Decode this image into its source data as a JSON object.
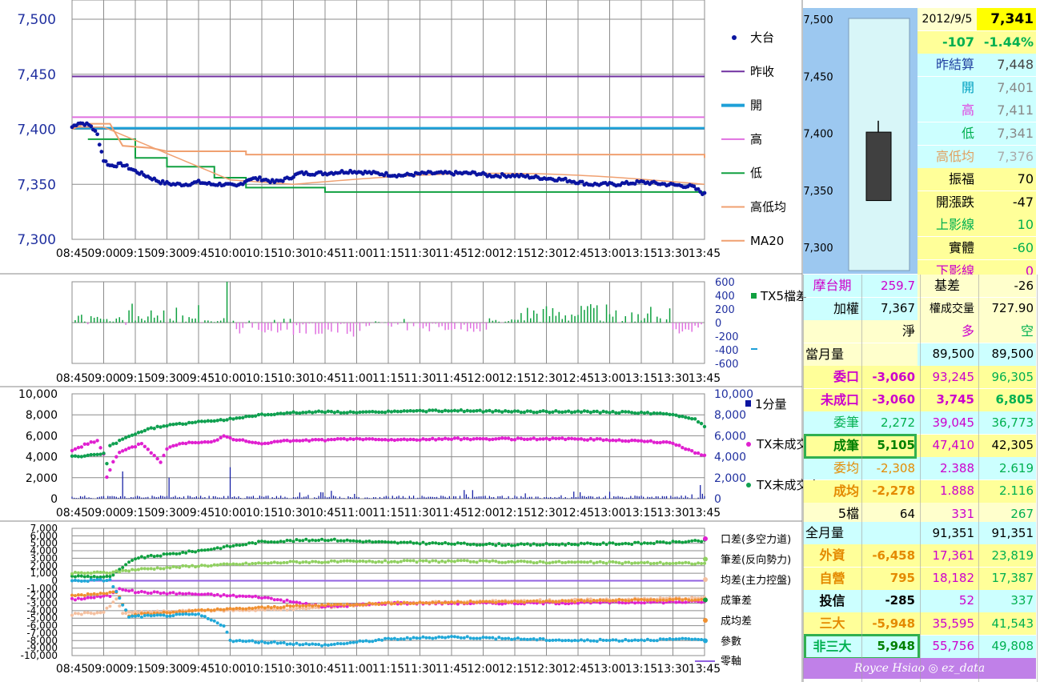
{
  "time_ticks": [
    "08:45",
    "09:00",
    "09:15",
    "09:30",
    "09:45",
    "10:00",
    "10:15",
    "10:30",
    "10:45",
    "11:00",
    "11:15",
    "11:30",
    "11:45",
    "12:00",
    "12:15",
    "12:30",
    "12:45",
    "13:00",
    "13:15",
    "13:30",
    "13:45"
  ],
  "colors": {
    "index": "#0a14a0",
    "prev_close": "#7030a0",
    "open": "#1ea0d8",
    "high": "#e070e0",
    "low": "#10a040",
    "hl_avg": "#f0a070",
    "ma20": "#f0a070",
    "tx5_pos": "#10a040",
    "tx5_neg": "#e070e0",
    "vol": "#0a14a0",
    "long": "#e020d0",
    "short": "#10a050",
    "diff_oi": "#10a040",
    "diff_trade": "#90d060",
    "diff_avg": "#f4c0a0",
    "diff_done": "#e020d0",
    "diff_doneavg": "#f09030",
    "diff_param": "#20a8d8",
    "zero": "#9060e0"
  },
  "chart_data": [
    {
      "id": "price",
      "type": "line",
      "ylim": [
        7300,
        7500
      ],
      "yticks": [
        "7,300",
        "7,350",
        "7,400",
        "7,450",
        "7,500"
      ],
      "lines": {
        "prev_close": 7448,
        "open": 7401,
        "high": 7411,
        "low_steps": [
          [
            0,
            7391
          ],
          [
            3,
            7374
          ],
          [
            5,
            7366
          ],
          [
            8,
            7356
          ],
          [
            10,
            7347
          ],
          [
            15,
            7343
          ]
        ],
        "hl_avg_steps": [
          [
            0,
            7400
          ],
          [
            1,
            7405
          ],
          [
            5,
            7383
          ],
          [
            10,
            7377
          ],
          [
            20,
            7375
          ]
        ]
      },
      "index_keys": [
        [
          0,
          7402
        ],
        [
          1,
          7406
        ],
        [
          2,
          7405
        ],
        [
          3,
          7403
        ],
        [
          4,
          7395
        ],
        [
          5,
          7372
        ],
        [
          6,
          7367
        ],
        [
          8,
          7368
        ],
        [
          10,
          7362
        ],
        [
          12,
          7357
        ],
        [
          14,
          7352
        ],
        [
          16,
          7350
        ],
        [
          18,
          7350
        ],
        [
          20,
          7352
        ],
        [
          22,
          7350
        ],
        [
          24,
          7350
        ],
        [
          26,
          7348
        ],
        [
          28,
          7355
        ],
        [
          30,
          7355
        ],
        [
          32,
          7352
        ],
        [
          34,
          7355
        ],
        [
          36,
          7360
        ],
        [
          38,
          7360
        ],
        [
          40,
          7360
        ],
        [
          44,
          7362
        ],
        [
          48,
          7360
        ],
        [
          52,
          7358
        ],
        [
          56,
          7360
        ],
        [
          60,
          7360
        ],
        [
          64,
          7360
        ],
        [
          66,
          7358
        ],
        [
          70,
          7358
        ],
        [
          74,
          7356
        ],
        [
          78,
          7354
        ],
        [
          82,
          7350
        ],
        [
          86,
          7350
        ],
        [
          90,
          7352
        ],
        [
          94,
          7350
        ],
        [
          98,
          7348
        ],
        [
          100,
          7341
        ]
      ],
      "legend": [
        "大台",
        "昨收",
        "開",
        "高",
        "低",
        "高低均",
        "MA20"
      ]
    },
    {
      "id": "tx5",
      "type": "bar",
      "ylim": [
        -600,
        600
      ],
      "yticks": [
        "600",
        "400",
        "200",
        "0",
        "-200",
        "-400",
        "-600"
      ],
      "legend": [
        "TX5檔差"
      ]
    },
    {
      "id": "oi",
      "type": "scatter",
      "left_ylim": [
        0,
        10000
      ],
      "left_ticks": [
        "0",
        "2,000",
        "4,000",
        "6,000",
        "8,000",
        "10,000"
      ],
      "right_ylim": [
        0,
        10000
      ],
      "right_ticks": [
        "0",
        "2,000",
        "4,000",
        "6,000",
        "8,000",
        "10,000"
      ],
      "long_keys": [
        [
          0,
          4600
        ],
        [
          3,
          5000
        ],
        [
          6,
          5400
        ],
        [
          8,
          5500
        ],
        [
          10,
          4300
        ],
        [
          11,
          2000
        ],
        [
          13,
          3500
        ],
        [
          15,
          4400
        ],
        [
          20,
          5000
        ],
        [
          22,
          5300
        ],
        [
          28,
          3500
        ],
        [
          30,
          4800
        ],
        [
          35,
          5300
        ],
        [
          40,
          5400
        ],
        [
          45,
          5500
        ],
        [
          48,
          6000
        ],
        [
          52,
          5600
        ],
        [
          55,
          5500
        ],
        [
          60,
          5200
        ],
        [
          65,
          5500
        ],
        [
          70,
          5500
        ],
        [
          80,
          5600
        ],
        [
          90,
          5700
        ],
        [
          100,
          5600
        ],
        [
          120,
          5700
        ],
        [
          140,
          5700
        ],
        [
          160,
          5700
        ],
        [
          180,
          5500
        ],
        [
          190,
          5300
        ],
        [
          197,
          4400
        ],
        [
          200,
          4100
        ]
      ],
      "short_keys": [
        [
          0,
          4000
        ],
        [
          5,
          4100
        ],
        [
          10,
          4300
        ],
        [
          11,
          3300
        ],
        [
          12,
          5000
        ],
        [
          15,
          5500
        ],
        [
          20,
          6200
        ],
        [
          25,
          6700
        ],
        [
          30,
          7000
        ],
        [
          40,
          7300
        ],
        [
          50,
          7600
        ],
        [
          60,
          8000
        ],
        [
          70,
          8200
        ],
        [
          80,
          8300
        ],
        [
          90,
          8200
        ],
        [
          100,
          8300
        ],
        [
          120,
          8400
        ],
        [
          140,
          8300
        ],
        [
          160,
          8300
        ],
        [
          180,
          8200
        ],
        [
          190,
          8000
        ],
        [
          197,
          7600
        ],
        [
          200,
          6900
        ]
      ],
      "legend": [
        "1分量",
        "TX未成交多",
        "TX未成交空"
      ]
    },
    {
      "id": "diff",
      "type": "scatter",
      "ylim": [
        -10000,
        7000
      ],
      "yticks": [
        "7,000",
        "6,000",
        "5,000",
        "4,000",
        "3,000",
        "2,000",
        "1,000",
        "0",
        "-1,000",
        "-2,000",
        "-3,000",
        "-4,000",
        "-5,000",
        "-6,000",
        "-7,000",
        "-8,000",
        "-9,000",
        "-10,000"
      ],
      "legend": [
        "口差(多空力道)",
        "筆差(反向勢力)",
        "均差(主力控盤)",
        "成筆差",
        "成均差",
        "參數",
        "零軸"
      ]
    }
  ],
  "price_box": {
    "yticks": [
      "7,500",
      "7,450",
      "7,400",
      "7,350",
      "7,300"
    ],
    "open": 7401,
    "high": 7411,
    "low": 7341,
    "close": 7341
  },
  "grid": {
    "date": "2012/9/5",
    "price": "7,341",
    "change": "-107",
    "change_pct": "-1.44%",
    "label_prev": "昨結算",
    "prev": "7,448",
    "label_open": "開",
    "open": "7,401",
    "label_high": "高",
    "high": "7,411",
    "label_low": "低",
    "low": "7,341",
    "label_hlavg": "高低均",
    "hlavg": "7,376",
    "label_amp": "振福",
    "amp": "70",
    "label_chg": "開漲跌",
    "chg": "-47",
    "label_upper": "上影線",
    "upper": "10",
    "label_body": "實體",
    "body": "-60",
    "label_lower": "下影線",
    "lower": "0",
    "label_mtx": "摩台期",
    "mtx": "259.7",
    "label_basis": "基差",
    "basis": "-26",
    "label_twii": "加權",
    "twii": "7,367",
    "label_turnover": "權成交量",
    "turnover": "727.90",
    "h_net": "淨",
    "h_long": "多",
    "h_short": "空",
    "label_month": "當月量",
    "month_l": "89,500",
    "month_s": "89,500",
    "label_wk": "委口",
    "wk_n": "-3,060",
    "wk_l": "93,245",
    "wk_s": "96,305",
    "label_oi": "未成口",
    "oi_n": "-3,060",
    "oi_l": "3,745",
    "oi_s": "6,805",
    "label_wb": "委筆",
    "wb_n": "2,272",
    "wb_l": "39,045",
    "wb_s": "36,773",
    "label_cb": "成筆",
    "cb_n": "5,105",
    "cb_l": "47,410",
    "cb_s": "42,305",
    "label_wa": "委均",
    "wa_n": "-2,308",
    "wa_l": "2.388",
    "wa_s": "2.619",
    "label_ca": "成均",
    "ca_n": "-2,278",
    "ca_l": "1.888",
    "ca_s": "2.116",
    "label_5": "5檔",
    "f5_n": "64",
    "f5_l": "331",
    "f5_s": "267",
    "label_all": "全月量",
    "all_l": "91,351",
    "all_s": "91,351",
    "label_foreign": "外資",
    "fo_n": "-6,458",
    "fo_l": "17,361",
    "fo_s": "23,819",
    "label_dealer": "自營",
    "de_n": "795",
    "de_l": "18,182",
    "de_s": "17,387",
    "label_trust": "投信",
    "tr_n": "-285",
    "tr_l": "52",
    "tr_s": "337",
    "label_big3": "三大",
    "b3_n": "-5,948",
    "b3_l": "35,595",
    "b3_s": "41,543",
    "label_nonbig3": "非三大",
    "nb3_n": "5,948",
    "nb3_l": "55,756",
    "nb3_s": "49,808",
    "credit": "Royce Hsiao ◎ ez_data"
  }
}
